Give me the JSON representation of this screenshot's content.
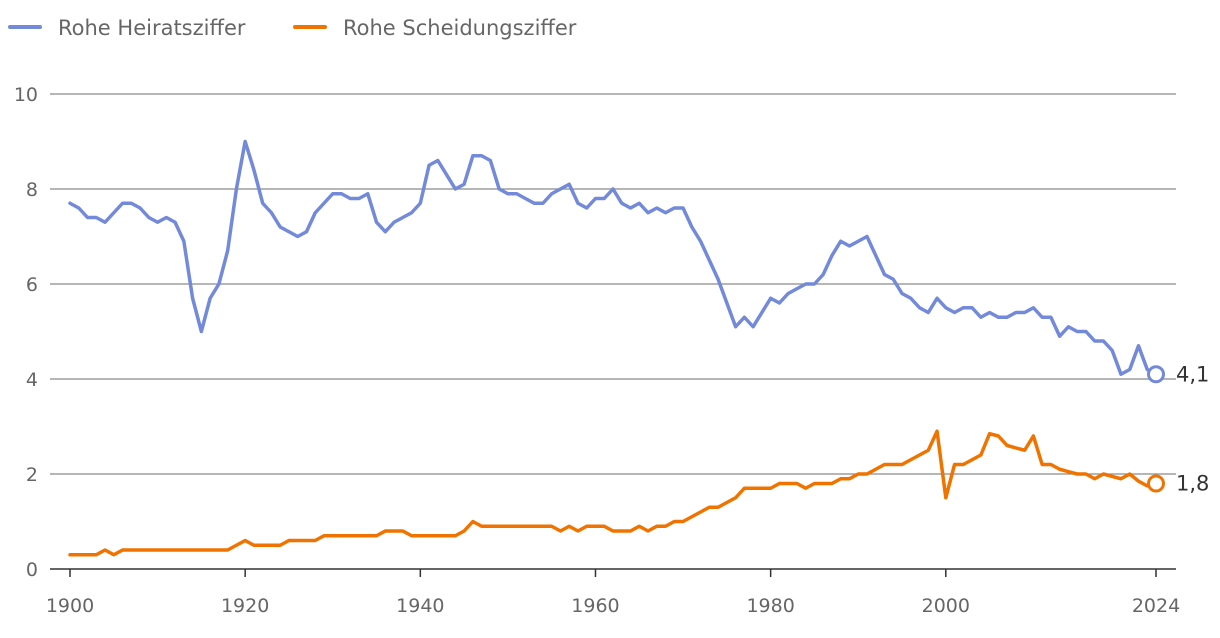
{
  "chart_data": {
    "type": "line",
    "title": "",
    "xlabel": "",
    "ylabel": "",
    "xlim": [
      1900,
      2024
    ],
    "ylim": [
      0,
      10
    ],
    "x_ticks": [
      "1900",
      "1920",
      "1940",
      "1960",
      "1980",
      "2000",
      "2024"
    ],
    "y_ticks": [
      "0",
      "2",
      "4",
      "6",
      "8",
      "10"
    ],
    "grid": true,
    "legend_position": "top-left",
    "series": [
      {
        "name": "Rohe Heiratsziffer",
        "color": "#7389d9",
        "end_label": "4,1",
        "x": [
          1900,
          1901,
          1902,
          1903,
          1904,
          1905,
          1906,
          1907,
          1908,
          1909,
          1910,
          1911,
          1912,
          1913,
          1914,
          1915,
          1916,
          1917,
          1918,
          1919,
          1920,
          1921,
          1922,
          1923,
          1924,
          1925,
          1926,
          1927,
          1928,
          1929,
          1930,
          1931,
          1932,
          1933,
          1934,
          1935,
          1936,
          1937,
          1938,
          1939,
          1940,
          1941,
          1942,
          1943,
          1944,
          1945,
          1946,
          1947,
          1948,
          1949,
          1950,
          1951,
          1952,
          1953,
          1954,
          1955,
          1956,
          1957,
          1958,
          1959,
          1960,
          1961,
          1962,
          1963,
          1964,
          1965,
          1966,
          1967,
          1968,
          1969,
          1970,
          1971,
          1972,
          1973,
          1974,
          1975,
          1976,
          1977,
          1978,
          1979,
          1980,
          1981,
          1982,
          1983,
          1984,
          1985,
          1986,
          1987,
          1988,
          1989,
          1990,
          1991,
          1992,
          1993,
          1994,
          1995,
          1996,
          1997,
          1998,
          1999,
          2000,
          2001,
          2002,
          2003,
          2004,
          2005,
          2006,
          2007,
          2008,
          2009,
          2010,
          2011,
          2012,
          2013,
          2014,
          2015,
          2016,
          2017,
          2018,
          2019,
          2020,
          2021,
          2022,
          2023,
          2024
        ],
        "values": [
          7.7,
          7.6,
          7.4,
          7.4,
          7.3,
          7.5,
          7.7,
          7.7,
          7.6,
          7.4,
          7.3,
          7.4,
          7.3,
          6.9,
          5.7,
          5.0,
          5.7,
          6.0,
          6.7,
          8.0,
          9.0,
          8.4,
          7.7,
          7.5,
          7.2,
          7.1,
          7.0,
          7.1,
          7.5,
          7.7,
          7.9,
          7.9,
          7.8,
          7.8,
          7.9,
          7.3,
          7.1,
          7.3,
          7.4,
          7.5,
          7.7,
          8.5,
          8.6,
          8.3,
          8.0,
          8.1,
          8.7,
          8.7,
          8.6,
          8.0,
          7.9,
          7.9,
          7.8,
          7.7,
          7.7,
          7.9,
          8.0,
          8.1,
          7.7,
          7.6,
          7.8,
          7.8,
          8.0,
          7.7,
          7.6,
          7.7,
          7.5,
          7.6,
          7.5,
          7.6,
          7.6,
          7.2,
          6.9,
          6.5,
          6.1,
          5.6,
          5.1,
          5.3,
          5.1,
          5.4,
          5.7,
          5.6,
          5.8,
          5.9,
          6.0,
          6.0,
          6.2,
          6.6,
          6.9,
          6.8,
          6.9,
          7.0,
          6.6,
          6.2,
          6.1,
          5.8,
          5.7,
          5.5,
          5.4,
          5.7,
          5.5,
          5.4,
          5.5,
          5.5,
          5.3,
          5.4,
          5.3,
          5.3,
          5.4,
          5.4,
          5.5,
          5.3,
          5.3,
          4.9,
          5.1,
          5.0,
          5.0,
          4.8,
          4.8,
          4.6,
          4.1,
          4.2,
          4.7,
          4.2,
          4.1
        ]
      },
      {
        "name": "Rohe Scheidungsziffer",
        "color": "#f07300",
        "end_label": "1,8",
        "x": [
          1900,
          1901,
          1902,
          1903,
          1904,
          1905,
          1906,
          1907,
          1908,
          1909,
          1910,
          1911,
          1912,
          1913,
          1914,
          1915,
          1916,
          1917,
          1918,
          1919,
          1920,
          1921,
          1922,
          1923,
          1924,
          1925,
          1926,
          1927,
          1928,
          1929,
          1930,
          1931,
          1932,
          1933,
          1934,
          1935,
          1936,
          1937,
          1938,
          1939,
          1940,
          1941,
          1942,
          1943,
          1944,
          1945,
          1946,
          1947,
          1948,
          1949,
          1950,
          1951,
          1952,
          1953,
          1954,
          1955,
          1956,
          1957,
          1958,
          1959,
          1960,
          1961,
          1962,
          1963,
          1964,
          1965,
          1966,
          1967,
          1968,
          1969,
          1970,
          1971,
          1972,
          1973,
          1974,
          1975,
          1976,
          1977,
          1978,
          1979,
          1980,
          1981,
          1982,
          1983,
          1984,
          1985,
          1986,
          1987,
          1988,
          1989,
          1990,
          1991,
          1992,
          1993,
          1994,
          1995,
          1996,
          1997,
          1998,
          1999,
          2000,
          2001,
          2002,
          2003,
          2004,
          2005,
          2006,
          2007,
          2008,
          2009,
          2010,
          2011,
          2012,
          2013,
          2014,
          2015,
          2016,
          2017,
          2018,
          2019,
          2020,
          2021,
          2022,
          2023,
          2024
        ],
        "values": [
          0.3,
          0.3,
          0.3,
          0.3,
          0.4,
          0.3,
          0.4,
          0.4,
          0.4,
          0.4,
          0.4,
          0.4,
          0.4,
          0.4,
          0.4,
          0.4,
          0.4,
          0.4,
          0.4,
          0.5,
          0.6,
          0.5,
          0.5,
          0.5,
          0.5,
          0.6,
          0.6,
          0.6,
          0.6,
          0.7,
          0.7,
          0.7,
          0.7,
          0.7,
          0.7,
          0.7,
          0.8,
          0.8,
          0.8,
          0.7,
          0.7,
          0.7,
          0.7,
          0.7,
          0.7,
          0.8,
          1.0,
          0.9,
          0.9,
          0.9,
          0.9,
          0.9,
          0.9,
          0.9,
          0.9,
          0.9,
          0.8,
          0.9,
          0.8,
          0.9,
          0.9,
          0.9,
          0.8,
          0.8,
          0.8,
          0.9,
          0.8,
          0.9,
          0.9,
          1.0,
          1.0,
          1.1,
          1.2,
          1.3,
          1.3,
          1.4,
          1.5,
          1.7,
          1.7,
          1.7,
          1.7,
          1.8,
          1.8,
          1.8,
          1.7,
          1.8,
          1.8,
          1.8,
          1.9,
          1.9,
          2.0,
          2.0,
          2.1,
          2.2,
          2.2,
          2.2,
          2.3,
          2.4,
          2.5,
          2.9,
          1.5,
          2.2,
          2.2,
          2.3,
          2.4,
          2.85,
          2.8,
          2.6,
          2.55,
          2.5,
          2.8,
          2.2,
          2.2,
          2.1,
          2.05,
          2.0,
          2.0,
          1.9,
          2.0,
          1.95,
          1.9,
          2.0,
          1.85,
          1.75,
          1.8
        ]
      }
    ]
  }
}
